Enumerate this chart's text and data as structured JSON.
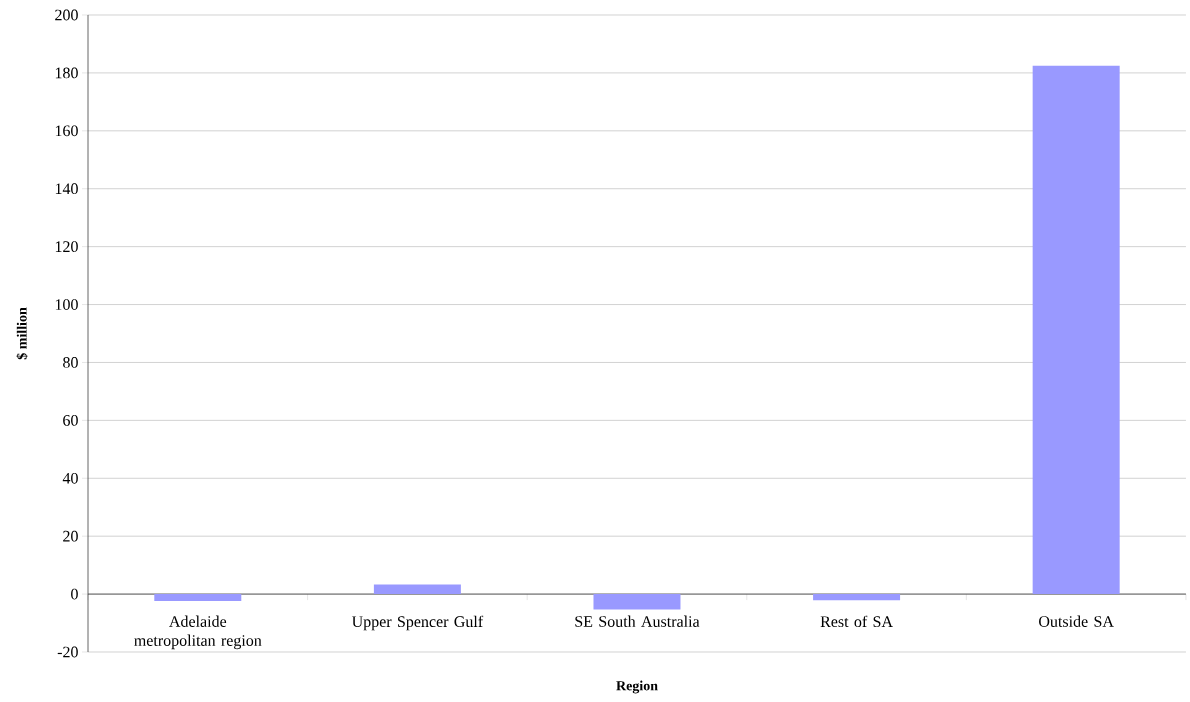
{
  "chart_data": {
    "type": "bar",
    "xlabel": "Region",
    "ylabel": "$ million",
    "categories": [
      "Adelaide metropolitan region",
      "Upper Spencer Gulf",
      "SE South Australia",
      "Rest of SA",
      "Outside SA"
    ],
    "values": [
      -2.4,
      3.3,
      -5.3,
      -2.1,
      182.5
    ],
    "color": "#9999ff",
    "ylim": [
      -20,
      200
    ],
    "yticks": [
      -20,
      0,
      20,
      40,
      60,
      80,
      100,
      120,
      140,
      160,
      180,
      200
    ],
    "grid": "y"
  }
}
